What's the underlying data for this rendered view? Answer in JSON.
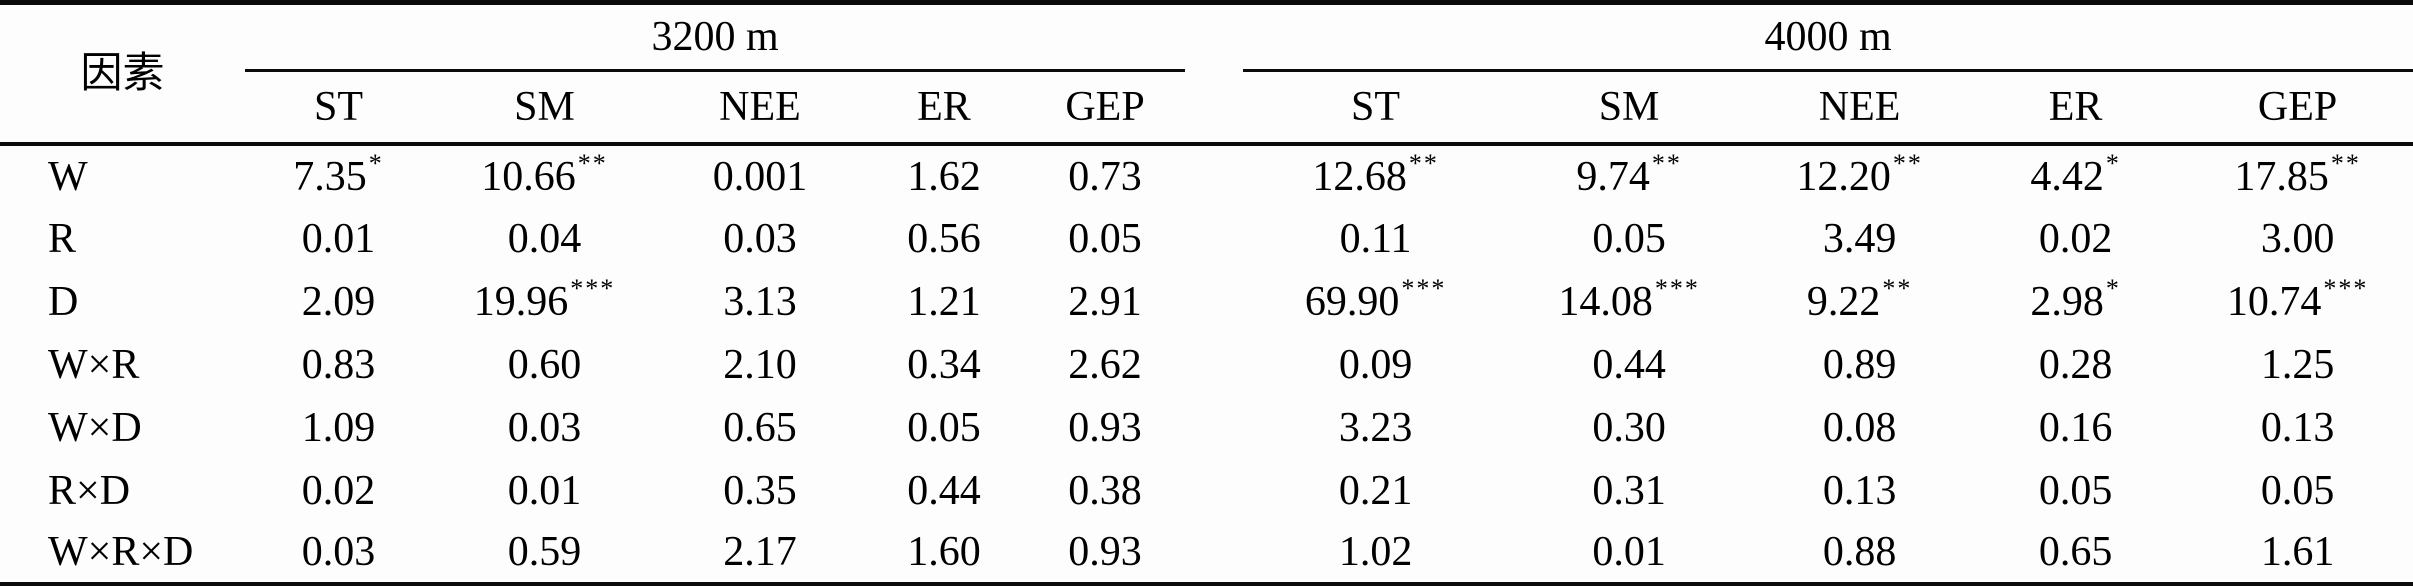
{
  "table": {
    "factor_header": "因素",
    "groups": [
      {
        "label": "3200 m",
        "columns": [
          "ST",
          "SM",
          "NEE",
          "ER",
          "GEP"
        ]
      },
      {
        "label": "4000 m",
        "columns": [
          "ST",
          "SM",
          "NEE",
          "ER",
          "GEP"
        ]
      }
    ],
    "rows": [
      {
        "factor": "W",
        "values_3200": [
          {
            "v": "7.35",
            "s": "*"
          },
          {
            "v": "10.66",
            "s": "**"
          },
          {
            "v": "0.001",
            "s": ""
          },
          {
            "v": "1.62",
            "s": ""
          },
          {
            "v": "0.73",
            "s": ""
          }
        ],
        "values_4000": [
          {
            "v": "12.68",
            "s": "**"
          },
          {
            "v": "9.74",
            "s": "**"
          },
          {
            "v": "12.20",
            "s": "**"
          },
          {
            "v": "4.42",
            "s": "*"
          },
          {
            "v": "17.85",
            "s": "**"
          }
        ]
      },
      {
        "factor": "R",
        "values_3200": [
          {
            "v": "0.01",
            "s": ""
          },
          {
            "v": "0.04",
            "s": ""
          },
          {
            "v": "0.03",
            "s": ""
          },
          {
            "v": "0.56",
            "s": ""
          },
          {
            "v": "0.05",
            "s": ""
          }
        ],
        "values_4000": [
          {
            "v": "0.11",
            "s": ""
          },
          {
            "v": "0.05",
            "s": ""
          },
          {
            "v": "3.49",
            "s": ""
          },
          {
            "v": "0.02",
            "s": ""
          },
          {
            "v": "3.00",
            "s": ""
          }
        ]
      },
      {
        "factor": "D",
        "values_3200": [
          {
            "v": "2.09",
            "s": ""
          },
          {
            "v": "19.96",
            "s": "***"
          },
          {
            "v": "3.13",
            "s": ""
          },
          {
            "v": "1.21",
            "s": ""
          },
          {
            "v": "2.91",
            "s": ""
          }
        ],
        "values_4000": [
          {
            "v": "69.90",
            "s": "***"
          },
          {
            "v": "14.08",
            "s": "***"
          },
          {
            "v": "9.22",
            "s": "**"
          },
          {
            "v": "2.98",
            "s": "*"
          },
          {
            "v": "10.74",
            "s": "***"
          }
        ]
      },
      {
        "factor": "W×R",
        "values_3200": [
          {
            "v": "0.83",
            "s": ""
          },
          {
            "v": "0.60",
            "s": ""
          },
          {
            "v": "2.10",
            "s": ""
          },
          {
            "v": "0.34",
            "s": ""
          },
          {
            "v": "2.62",
            "s": ""
          }
        ],
        "values_4000": [
          {
            "v": "0.09",
            "s": ""
          },
          {
            "v": "0.44",
            "s": ""
          },
          {
            "v": "0.89",
            "s": ""
          },
          {
            "v": "0.28",
            "s": ""
          },
          {
            "v": "1.25",
            "s": ""
          }
        ]
      },
      {
        "factor": "W×D",
        "values_3200": [
          {
            "v": "1.09",
            "s": ""
          },
          {
            "v": "0.03",
            "s": ""
          },
          {
            "v": "0.65",
            "s": ""
          },
          {
            "v": "0.05",
            "s": ""
          },
          {
            "v": "0.93",
            "s": ""
          }
        ],
        "values_4000": [
          {
            "v": "3.23",
            "s": ""
          },
          {
            "v": "0.30",
            "s": ""
          },
          {
            "v": "0.08",
            "s": ""
          },
          {
            "v": "0.16",
            "s": ""
          },
          {
            "v": "0.13",
            "s": ""
          }
        ]
      },
      {
        "factor": "R×D",
        "values_3200": [
          {
            "v": "0.02",
            "s": ""
          },
          {
            "v": "0.01",
            "s": ""
          },
          {
            "v": "0.35",
            "s": ""
          },
          {
            "v": "0.44",
            "s": ""
          },
          {
            "v": "0.38",
            "s": ""
          }
        ],
        "values_4000": [
          {
            "v": "0.21",
            "s": ""
          },
          {
            "v": "0.31",
            "s": ""
          },
          {
            "v": "0.13",
            "s": ""
          },
          {
            "v": "0.05",
            "s": ""
          },
          {
            "v": "0.05",
            "s": ""
          }
        ]
      },
      {
        "factor": "W×R×D",
        "values_3200": [
          {
            "v": "0.03",
            "s": ""
          },
          {
            "v": "0.59",
            "s": ""
          },
          {
            "v": "2.17",
            "s": ""
          },
          {
            "v": "1.60",
            "s": ""
          },
          {
            "v": "0.93",
            "s": ""
          }
        ],
        "values_4000": [
          {
            "v": "1.02",
            "s": ""
          },
          {
            "v": "0.01",
            "s": ""
          },
          {
            "v": "0.88",
            "s": ""
          },
          {
            "v": "0.65",
            "s": ""
          },
          {
            "v": "1.61",
            "s": ""
          }
        ]
      }
    ],
    "colors": {
      "text": "#000000",
      "rule": "#0b0b0b",
      "background": "#fdfdfd"
    }
  }
}
